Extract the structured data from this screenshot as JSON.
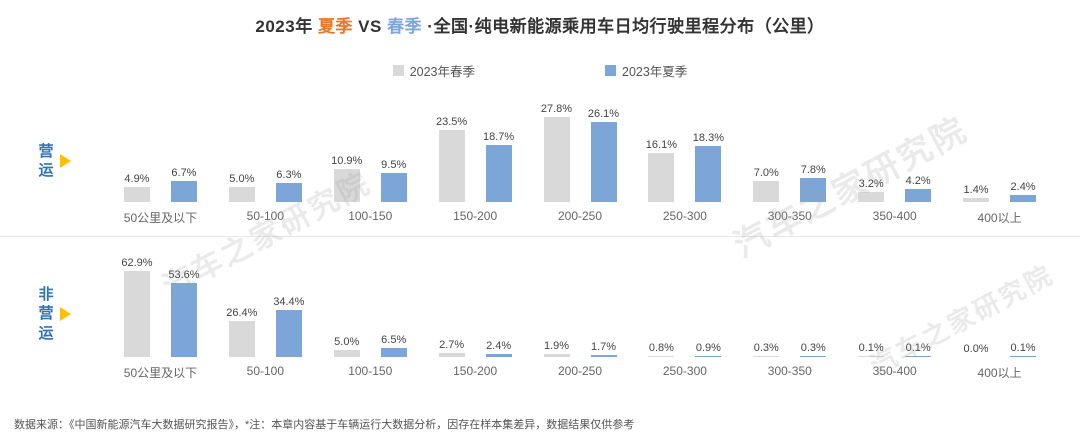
{
  "title": {
    "prefix": "2023年 ",
    "summer": "夏季",
    "vs": " VS ",
    "spring": "春季",
    "suffix": " ·全国·纯电新能源乘用车日均行驶里程分布（公里）"
  },
  "legend": [
    {
      "label": "2023年春季",
      "color": "#d9d9d9"
    },
    {
      "label": "2023年夏季",
      "color": "#7ca6d8"
    }
  ],
  "colors": {
    "panel_label": "#2e75b6",
    "arrow": "#ffc000",
    "summer_text": "#e8762c",
    "spring_text": "#7da7d9",
    "spring_bar": "#d9d9d9",
    "summer_bar": "#7ca6d8"
  },
  "watermark": "汽车之家研究院",
  "footer": "数据来源：《中国新能源汽车大数据研究报告》，*注：本章内容基于车辆运行大数据分析，因存在样本集差异，数据结果仅供参考",
  "chart_data": [
    {
      "type": "bar",
      "panel_label": "营运",
      "categories": [
        "50公里及以下",
        "50-100",
        "100-150",
        "150-200",
        "200-250",
        "250-300",
        "300-350",
        "350-400",
        "400以上"
      ],
      "series": [
        {
          "name": "2023年春季",
          "color": "#d9d9d9",
          "values": [
            4.9,
            5.0,
            10.9,
            23.5,
            27.8,
            16.1,
            7.0,
            3.2,
            1.4
          ]
        },
        {
          "name": "2023年夏季",
          "color": "#7ca6d8",
          "values": [
            6.7,
            6.3,
            9.5,
            18.7,
            26.1,
            18.3,
            7.8,
            4.2,
            2.4
          ]
        }
      ],
      "ylim": [
        0,
        30
      ],
      "value_suffix": "%",
      "grid": false,
      "legend_position": "top"
    },
    {
      "type": "bar",
      "panel_label": "非营运",
      "categories": [
        "50公里及以下",
        "50-100",
        "100-150",
        "150-200",
        "200-250",
        "250-300",
        "300-350",
        "350-400",
        "400以上"
      ],
      "series": [
        {
          "name": "2023年春季",
          "color": "#d9d9d9",
          "values": [
            62.9,
            26.4,
            5.0,
            2.7,
            1.9,
            0.8,
            0.3,
            0.1,
            0.0
          ]
        },
        {
          "name": "2023年夏季",
          "color": "#7ca6d8",
          "values": [
            53.6,
            34.4,
            6.5,
            2.4,
            1.7,
            0.9,
            0.3,
            0.1,
            0.1
          ]
        }
      ],
      "ylim": [
        0,
        70
      ],
      "value_suffix": "%",
      "grid": false,
      "legend_position": "top"
    }
  ]
}
